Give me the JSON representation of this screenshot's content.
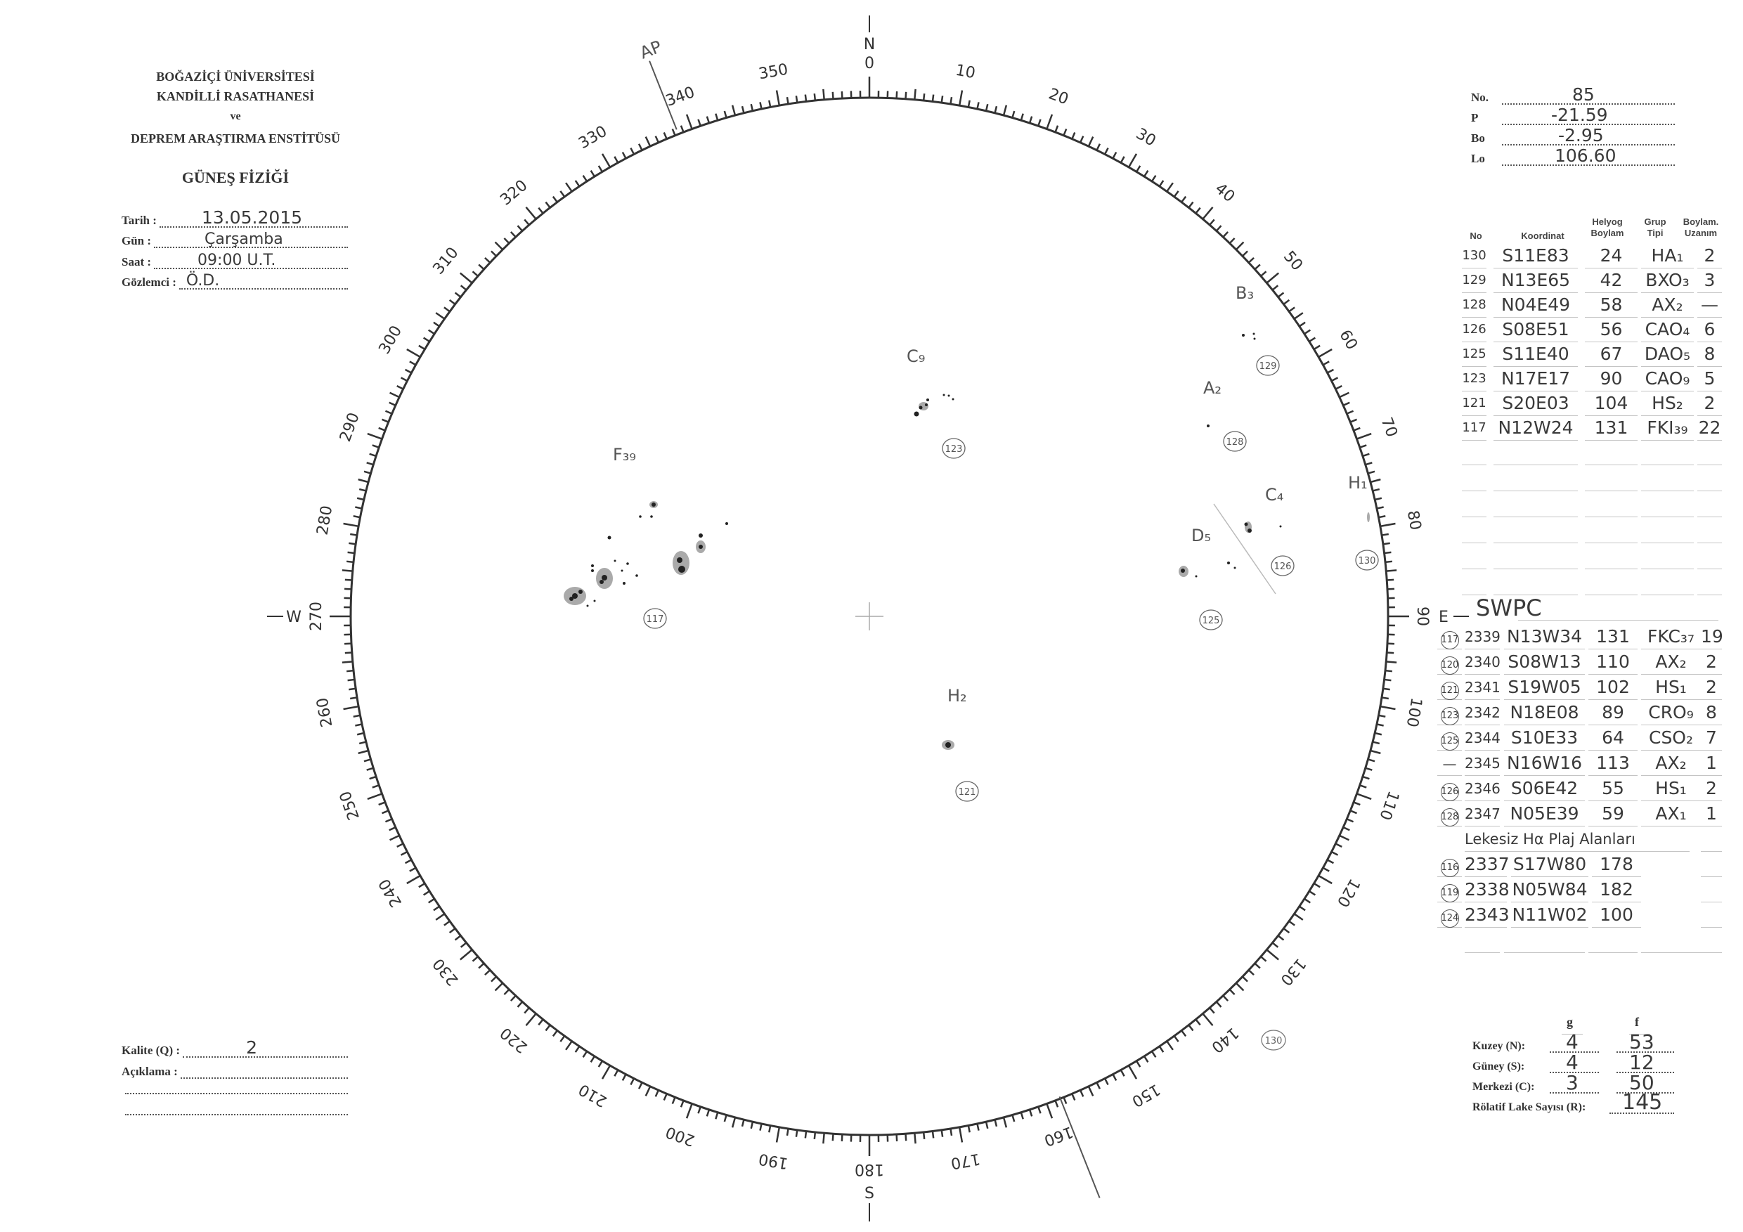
{
  "institution": {
    "line1": "BOĞAZİÇİ ÜNİVERSİTESİ",
    "line2": "KANDİLLİ RASATHANESİ",
    "line3": "ve",
    "line4": "DEPREM ARAŞTIRMA ENSTİTÜSÜ",
    "department": "GÜNEŞ FİZİĞİ"
  },
  "observation": {
    "date_label": "Tarih :",
    "date": "13.05.2015",
    "day_label": "Gün :",
    "day": "Çarşamba",
    "time_label": "Saat :",
    "time": "09:00 U.T.",
    "observer_label": "Gözlemci :",
    "observer": "Ö.D."
  },
  "quality": {
    "quality_label": "Kalite (Q) :",
    "quality": "2",
    "note_label": "Açıklama :"
  },
  "parameters": {
    "no_label": "No.",
    "no": "85",
    "p_label": "P",
    "p": "-21.59",
    "bo_label": "Bo",
    "bo": "-2.95",
    "lo_label": "Lo",
    "lo": "106.60"
  },
  "groups_table": {
    "headers": {
      "no": "No",
      "coord": "Koordinat",
      "long1": "Helyog",
      "long2": "Boylam",
      "type1": "Grup",
      "type2": "Tipi",
      "ext1": "Boylam.",
      "ext2": "Uzanım"
    },
    "rows": [
      {
        "no": "130",
        "coord": "S11E83",
        "long": "24",
        "type": "HA₁",
        "ext": "2"
      },
      {
        "no": "129",
        "coord": "N13E65",
        "long": "42",
        "type": "BXO₃",
        "ext": "3"
      },
      {
        "no": "128",
        "coord": "N04E49",
        "long": "58",
        "type": "AX₂",
        "ext": "—"
      },
      {
        "no": "126",
        "coord": "S08E51",
        "long": "56",
        "type": "CAO₄",
        "ext": "6"
      },
      {
        "no": "125",
        "coord": "S11E40",
        "long": "67",
        "type": "DAO₅",
        "ext": "8"
      },
      {
        "no": "123",
        "coord": "N17E17",
        "long": "90",
        "type": "CAO₉",
        "ext": "5"
      },
      {
        "no": "121",
        "coord": "S20E03",
        "long": "104",
        "type": "HS₂",
        "ext": "2"
      },
      {
        "no": "117",
        "coord": "N12W24",
        "long": "131",
        "type": "FKI₃₉",
        "ext": "22"
      }
    ]
  },
  "swpc": {
    "title": "SWPC",
    "rows": [
      {
        "ref": "117",
        "noaa": "2339",
        "coord": "N13W34",
        "long": "131",
        "type": "FKC₃₇",
        "ext": "19"
      },
      {
        "ref": "120",
        "noaa": "2340",
        "coord": "S08W13",
        "long": "110",
        "type": "AX₂",
        "ext": "2"
      },
      {
        "ref": "121",
        "noaa": "2341",
        "coord": "S19W05",
        "long": "102",
        "type": "HS₁",
        "ext": "2"
      },
      {
        "ref": "123",
        "noaa": "2342",
        "coord": "N18E08",
        "long": "89",
        "type": "CRO₉",
        "ext": "8"
      },
      {
        "ref": "125",
        "noaa": "2344",
        "coord": "S10E33",
        "long": "64",
        "type": "CSO₂",
        "ext": "7"
      },
      {
        "ref": "—",
        "noaa": "2345",
        "coord": "N16W16",
        "long": "113",
        "type": "AX₂",
        "ext": "1"
      },
      {
        "ref": "126",
        "noaa": "2346",
        "coord": "S06E42",
        "long": "55",
        "type": "HS₁",
        "ext": "2"
      },
      {
        "ref": "128",
        "noaa": "2347",
        "coord": "N05E39",
        "long": "59",
        "type": "AX₁",
        "ext": "1"
      }
    ],
    "plage_title": "Lekesiz Hα Plaj Alanları",
    "plage_rows": [
      {
        "ref": "116",
        "noaa": "2337",
        "coord": "S17W80",
        "long": "178"
      },
      {
        "ref": "119",
        "noaa": "2338",
        "coord": "N05W84",
        "long": "182"
      },
      {
        "ref": "124",
        "noaa": "2343",
        "coord": "N11W02",
        "long": "100"
      }
    ]
  },
  "counts": {
    "g_label": "g",
    "f_label": "f",
    "north_label": "Kuzey (N):",
    "north_g": "4",
    "north_f": "53",
    "south_label": "Güney (S):",
    "south_g": "4",
    "south_f": "12",
    "central_label": "Merkezi (C):",
    "central_g": "3",
    "central_f": "50",
    "relative_label": "Rölatif Lake Sayısı (R):",
    "relative": "145"
  },
  "disk": {
    "north": "N",
    "south": "S",
    "east": "E",
    "west": "W",
    "axis_label": "AP",
    "degree_labels": [
      "0",
      "10",
      "20",
      "30",
      "40",
      "50",
      "60",
      "70",
      "80",
      "90",
      "100",
      "110",
      "120",
      "130",
      "140",
      "150",
      "160",
      "170",
      "180",
      "190",
      "200",
      "210",
      "220",
      "230",
      "240",
      "250",
      "260",
      "270",
      "280",
      "290",
      "300",
      "310",
      "320",
      "330",
      "340",
      "350"
    ],
    "groups": [
      {
        "label": "F₃₉",
        "ref": "117"
      },
      {
        "label": "C₉",
        "ref": "123"
      },
      {
        "label": "B₃",
        "ref": "129"
      },
      {
        "label": "A₂",
        "ref": "128"
      },
      {
        "label": "C₄",
        "ref": "126"
      },
      {
        "label": "D₅",
        "ref": "125"
      },
      {
        "label": "H₁",
        "ref": "130"
      },
      {
        "label": "H₂",
        "ref": "121"
      }
    ],
    "extra_ref": "130"
  }
}
